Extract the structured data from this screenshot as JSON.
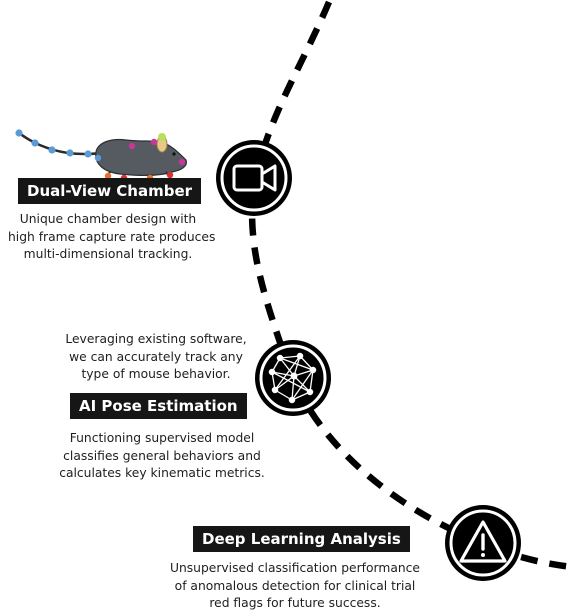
{
  "stages": [
    {
      "id": "dual-view",
      "icon": "video-camera-icon",
      "title": "Dual-View Chamber",
      "description_lines": [
        "Unique chamber design with",
        "high frame capture rate produces",
        "multi-dimensional tracking."
      ]
    },
    {
      "id": "pose",
      "icon": "neural-network-icon",
      "title": "AI Pose Estimation",
      "intro_lines": [
        "Leveraging existing software,",
        "we can accurately track any",
        "type of mouse behavior."
      ],
      "description_lines": [
        "Functioning supervised model",
        "classifies general behaviors and",
        "calculates key kinematic metrics."
      ]
    },
    {
      "id": "deep-learning",
      "icon": "warning-triangle-icon",
      "title": "Deep Learning Analysis",
      "description_lines": [
        "Unsupervised classification performance",
        "of anomalous detection for clinical trial",
        "red flags for future success."
      ]
    }
  ],
  "illustration": {
    "subject": "mouse-with-pose-keypoints",
    "colors": {
      "body": "#555b60",
      "tail_dots": "#5b9bd5",
      "ear": "#e7c98a",
      "ear_marker": "#b8e05a",
      "keypoint_magenta": "#c8359b",
      "keypoint_orange": "#e8712a",
      "keypoint_red": "#d8312f"
    }
  },
  "colors": {
    "path": "#000000",
    "node_fill": "#000000",
    "node_ring": "#ffffff",
    "label_bg": "#161616",
    "label_text": "#ffffff",
    "body_text": "#1e1e1e"
  }
}
